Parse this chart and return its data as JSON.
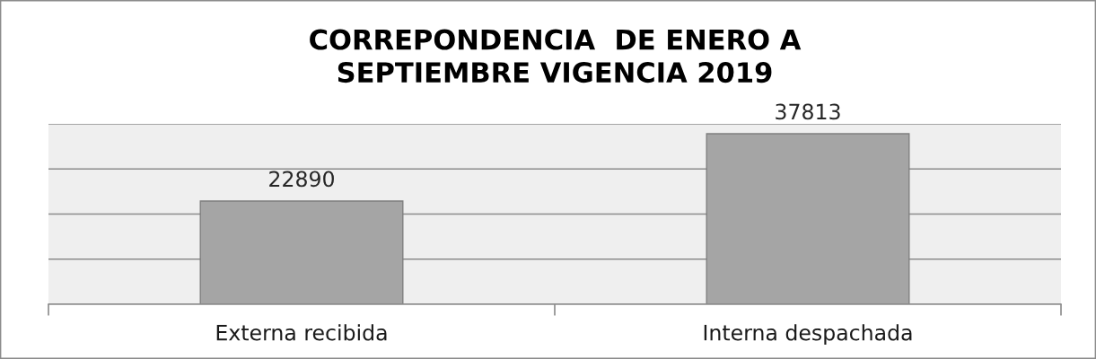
{
  "chart_data": {
    "type": "bar",
    "title": "CORREPONDENCIA  DE ENERO A\nSEPTIEMBRE VIGENCIA 2019",
    "categories": [
      "Externa recibida",
      "Interna despachada"
    ],
    "values": [
      22890,
      37813
    ],
    "color": "#a5a5a5",
    "ylim": [
      0,
      40000
    ],
    "yticks": [
      {
        "value": 0,
        "label": null
      },
      {
        "value": 10000,
        "label": null
      },
      {
        "value": 20000,
        "label": null
      },
      {
        "value": 30000,
        "label": null
      },
      {
        "value": 40000,
        "label": null
      }
    ],
    "tick_labels": "x",
    "grid": "y",
    "data_labels": true
  }
}
